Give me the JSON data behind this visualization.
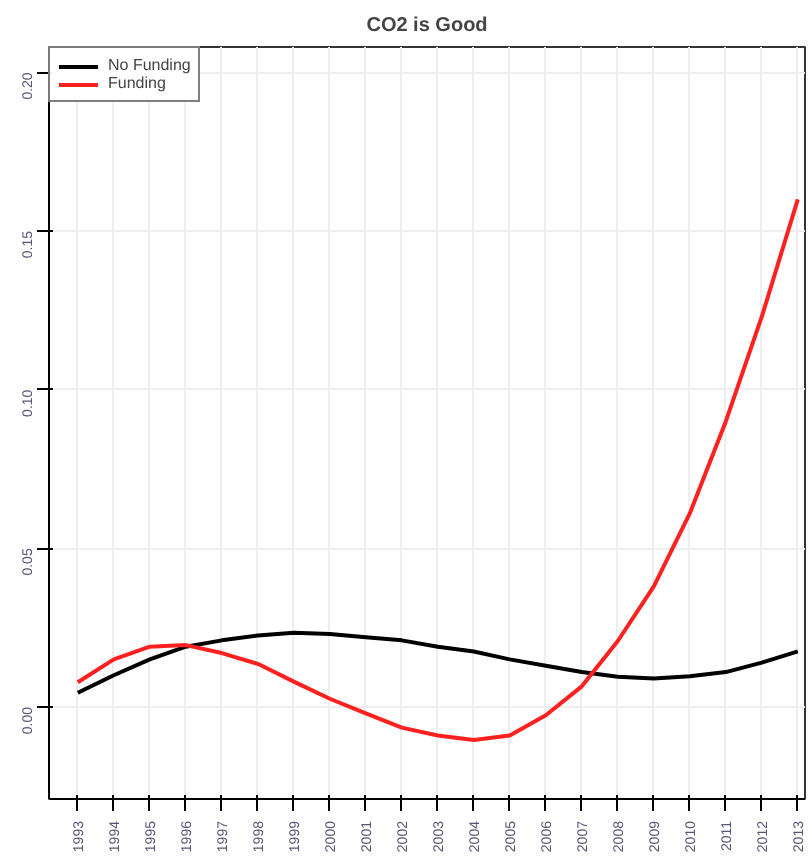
{
  "chart_data": {
    "type": "line",
    "title": "CO2 is Good",
    "x": [
      1993,
      1994,
      1995,
      1996,
      1997,
      1998,
      1999,
      2000,
      2001,
      2002,
      2003,
      2004,
      2005,
      2006,
      2007,
      2008,
      2009,
      2010,
      2011,
      2012,
      2013
    ],
    "series": [
      {
        "name": "No Funding",
        "color": "#000000",
        "values": [
          0.0045,
          0.01,
          0.015,
          0.019,
          0.021,
          0.0225,
          0.0234,
          0.023,
          0.022,
          0.021,
          0.019,
          0.0175,
          0.015,
          0.013,
          0.011,
          0.0095,
          0.009,
          0.0097,
          0.011,
          0.014,
          0.0175
        ]
      },
      {
        "name": "Funding",
        "color": "#ff2020",
        "values": [
          0.0078,
          0.015,
          0.019,
          0.0195,
          0.017,
          0.0136,
          0.008,
          0.0026,
          -0.002,
          -0.0065,
          -0.009,
          -0.0104,
          -0.009,
          -0.0026,
          0.0065,
          0.0208,
          0.038,
          0.061,
          0.09,
          0.123,
          0.16
        ]
      }
    ],
    "xlim": [
      1992.2,
      2013.2
    ],
    "ylim": [
      -0.029,
      0.208
    ],
    "xticks": [
      1993,
      1994,
      1995,
      1996,
      1997,
      1998,
      1999,
      2000,
      2001,
      2002,
      2003,
      2004,
      2005,
      2006,
      2007,
      2008,
      2009,
      2010,
      2011,
      2012,
      2013
    ],
    "yticks": [
      {
        "value": 0.0,
        "label": "0.00"
      },
      {
        "value": 0.05,
        "label": "0.05"
      },
      {
        "value": 0.1,
        "label": "0.10"
      },
      {
        "value": 0.15,
        "label": "0.15"
      },
      {
        "value": 0.2,
        "label": "0.20"
      }
    ],
    "grid": true,
    "legend": "top left",
    "marker": "none",
    "line_style": "solid"
  }
}
